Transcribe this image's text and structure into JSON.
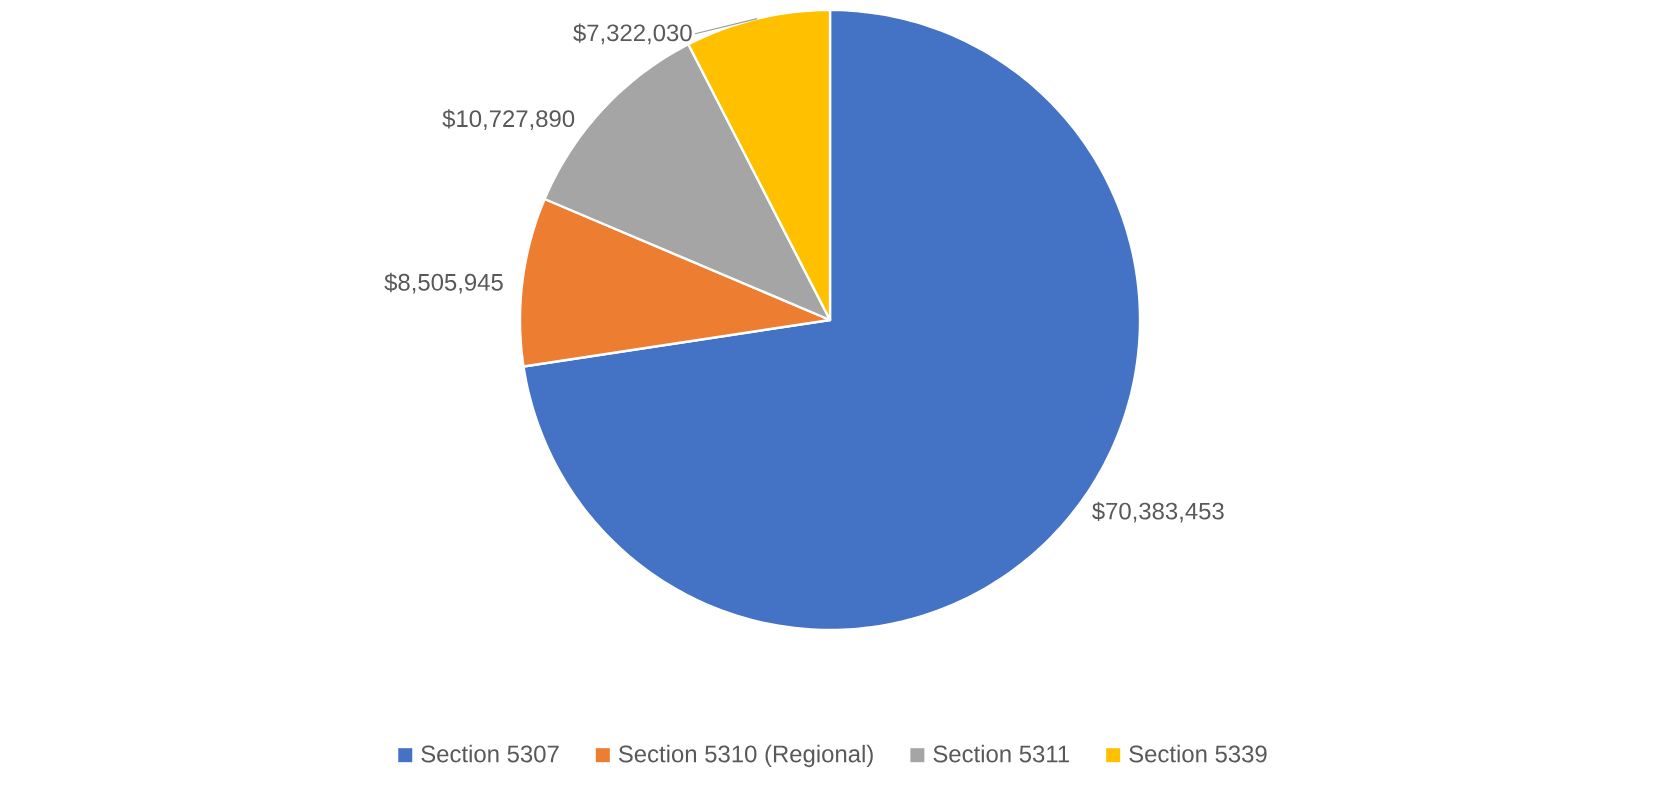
{
  "chart_data": {
    "type": "pie",
    "categories": [
      "Section 5307",
      "Section 5310 (Regional)",
      "Section 5311",
      "Section 5339"
    ],
    "values": [
      70383453,
      8505945,
      10727890,
      7322030
    ],
    "colors": [
      "#4472c4",
      "#ed7d31",
      "#a5a5a5",
      "#ffc000"
    ],
    "value_labels": [
      "$70,383,453",
      "$8,505,945",
      "$10,727,890",
      "$7,322,030"
    ],
    "legend": "bottom"
  }
}
